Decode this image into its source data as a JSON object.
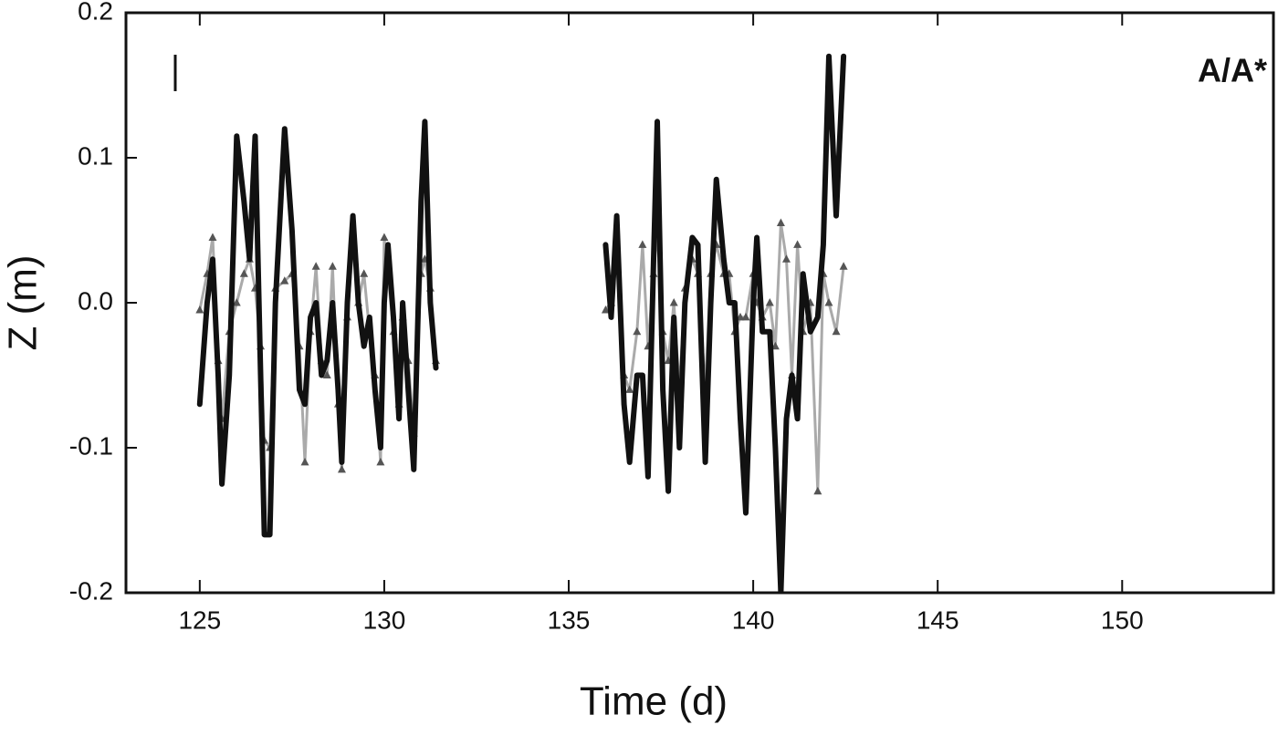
{
  "chart_data": {
    "type": "line",
    "annotation": "A/A*",
    "xlabel": "Time (d)",
    "ylabel": "Z (m)",
    "xlim": [
      123,
      154.1
    ],
    "xticks": [
      125,
      130,
      135,
      140,
      145,
      150
    ],
    "ylim": [
      -0.2,
      0.2
    ],
    "yticks": [
      0.2,
      0.1,
      {
        "value": 0,
        "label": "0.0"
      },
      -0.1,
      -0.2
    ],
    "x": [
      125.0,
      125.2,
      125.35,
      125.5,
      125.6,
      125.8,
      126.0,
      126.2,
      126.35,
      126.5,
      126.65,
      126.75,
      126.9,
      127.05,
      127.3,
      127.5,
      127.7,
      127.85,
      128.0,
      128.15,
      128.3,
      128.45,
      128.6,
      128.75,
      128.85,
      129.0,
      129.15,
      129.3,
      129.45,
      129.6,
      129.75,
      129.9,
      130.0,
      130.1,
      130.25,
      130.4,
      130.5,
      130.65,
      130.8,
      131.0,
      131.1,
      131.25,
      131.4,
      133.5,
      136.0,
      136.15,
      136.3,
      136.5,
      136.65,
      136.85,
      137.0,
      137.15,
      137.3,
      137.4,
      137.55,
      137.7,
      137.85,
      138.0,
      138.15,
      138.35,
      138.5,
      138.7,
      138.85,
      139.0,
      139.2,
      139.35,
      139.5,
      139.65,
      139.8,
      140.0,
      140.1,
      140.25,
      140.45,
      140.6,
      140.75,
      140.9,
      141.05,
      141.2,
      141.35,
      141.55,
      141.75,
      141.9,
      142.05,
      142.25,
      142.45
    ],
    "series": [
      {
        "color": "#aaaaaa",
        "marker": "triangle",
        "width": 3,
        "values": [
          -0.005,
          0.02,
          0.045,
          -0.04,
          -0.08,
          -0.02,
          0,
          0.02,
          0.03,
          0.01,
          -0.03,
          -0.095,
          -0.1,
          0.01,
          0.015,
          0.02,
          -0.03,
          -0.11,
          -0.02,
          0.025,
          -0.04,
          -0.05,
          0.025,
          -0.07,
          -0.115,
          -0.01,
          0.04,
          0,
          0.02,
          -0.02,
          -0.05,
          -0.11,
          0.045,
          0.02,
          -0.02,
          -0.07,
          -0.01,
          -0.04,
          -0.09,
          0.02,
          0.03,
          0.01,
          -0.04,
          null,
          -0.005,
          0,
          0.03,
          -0.05,
          -0.06,
          -0.02,
          0.04,
          -0.03,
          0.02,
          0.05,
          -0.02,
          -0.04,
          0,
          -0.06,
          0.01,
          0.03,
          0.02,
          -0.06,
          0.02,
          0.04,
          0.02,
          0.02,
          -0.02,
          -0.01,
          -0.01,
          0.02,
          0,
          -0.01,
          0,
          -0.03,
          0.055,
          0.03,
          -0.05,
          0.04,
          -0.02,
          0,
          -0.13,
          0.02,
          0,
          -0.02,
          0.025
        ]
      },
      {
        "color": "#111111",
        "width": 6,
        "values": [
          -0.07,
          0,
          0.03,
          -0.05,
          -0.125,
          -0.05,
          0.115,
          0.07,
          0.03,
          0.115,
          -0.05,
          -0.16,
          -0.16,
          0,
          0.12,
          0.05,
          -0.06,
          -0.07,
          -0.01,
          0,
          -0.05,
          -0.04,
          0,
          -0.06,
          -0.11,
          0,
          0.06,
          0,
          -0.03,
          -0.01,
          -0.06,
          -0.1,
          0,
          0.04,
          -0.01,
          -0.08,
          0,
          -0.06,
          -0.115,
          0.07,
          0.125,
          0,
          -0.045,
          null,
          0.04,
          -0.01,
          0.06,
          -0.07,
          -0.11,
          -0.05,
          -0.05,
          -0.12,
          0.03,
          0.125,
          -0.06,
          -0.13,
          -0.01,
          -0.1,
          0,
          0.045,
          0.04,
          -0.11,
          0,
          0.085,
          0.03,
          0,
          0,
          -0.08,
          -0.145,
          0,
          0.045,
          -0.02,
          -0.02,
          -0.1,
          -0.2,
          -0.08,
          -0.05,
          -0.08,
          0.02,
          -0.02,
          -0.01,
          0.04,
          0.17,
          0.06,
          0.17
        ]
      }
    ]
  }
}
